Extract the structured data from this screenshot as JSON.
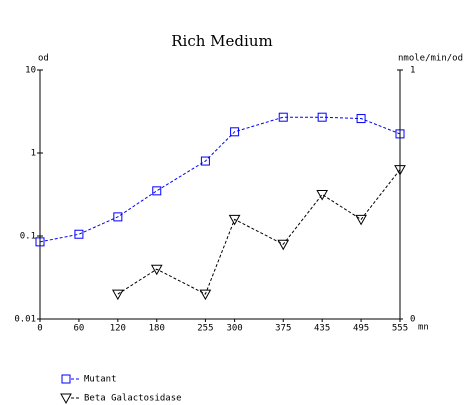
{
  "chart_data": {
    "type": "line",
    "title": "Rich Medium",
    "x": [
      0,
      60,
      120,
      180,
      255,
      300,
      375,
      435,
      495,
      555
    ],
    "xlim": [
      0,
      555
    ],
    "xticks": [
      0,
      60,
      120,
      180,
      255,
      300,
      375,
      435,
      495,
      555
    ],
    "x_label": "mn",
    "ylim": [
      0.01,
      10
    ],
    "yticks": [
      0.01,
      0.1,
      1,
      10
    ],
    "yscale": "log",
    "y_label": "od",
    "y2lim": [
      0,
      1
    ],
    "y2ticks": [
      0,
      1
    ],
    "y2_label": "nmole/min/od",
    "series": [
      {
        "name": "Mutant",
        "color": "#0000ff",
        "marker": "square",
        "values": [
          0.085,
          0.105,
          0.17,
          0.35,
          0.8,
          1.8,
          2.7,
          2.7,
          2.6,
          1.7
        ]
      },
      {
        "name": "Beta Galactosidase",
        "color": "#000000",
        "marker": "triangle-down",
        "axis": "y2",
        "values": [
          null,
          null,
          0.1,
          0.2,
          0.1,
          0.4,
          0.3,
          0.5,
          0.4,
          0.6
        ]
      }
    ]
  }
}
